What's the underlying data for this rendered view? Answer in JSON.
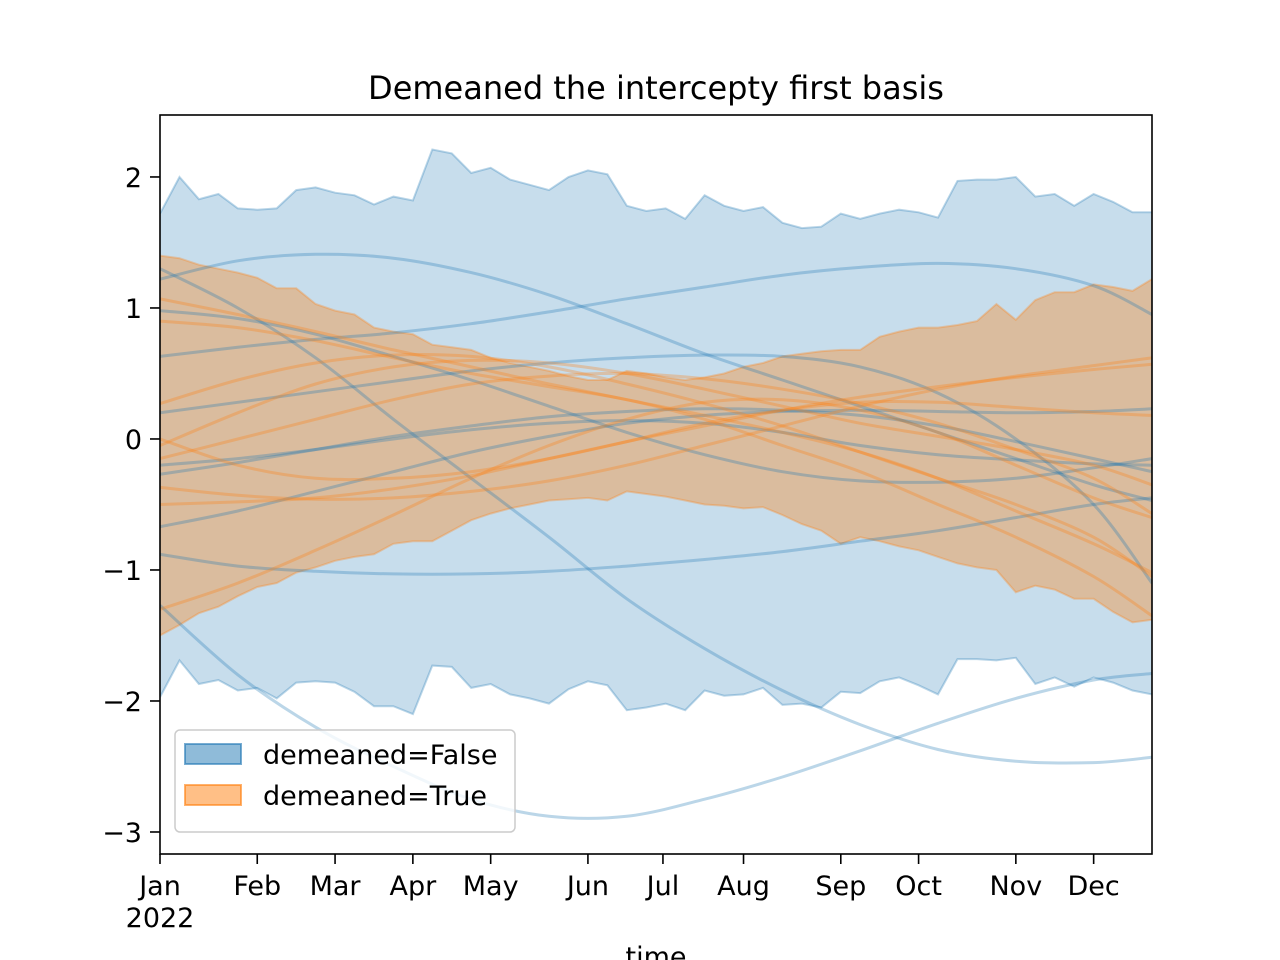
{
  "chart_data": {
    "type": "line",
    "title": "Demeaned the intercepty first basis",
    "xlabel": "time",
    "x_year_label": "2022",
    "xlim": [
      0,
      357
    ],
    "xticks": [
      {
        "value": 0,
        "label": "Jan"
      },
      {
        "value": 35,
        "label": "Feb"
      },
      {
        "value": 63,
        "label": "Mar"
      },
      {
        "value": 91,
        "label": "Apr"
      },
      {
        "value": 119,
        "label": "May"
      },
      {
        "value": 154,
        "label": "Jun"
      },
      {
        "value": 181,
        "label": "Jul"
      },
      {
        "value": 210,
        "label": "Aug"
      },
      {
        "value": 245,
        "label": "Sep"
      },
      {
        "value": 273,
        "label": "Oct"
      },
      {
        "value": 308,
        "label": "Nov"
      },
      {
        "value": 336,
        "label": "Dec"
      }
    ],
    "ylim": [
      -3.168,
      2.473
    ],
    "yticks": [
      {
        "value": -3,
        "label": "−3"
      },
      {
        "value": -2,
        "label": "−2"
      },
      {
        "value": -1,
        "label": "−1"
      },
      0,
      1,
      2
    ],
    "legend": "lower left",
    "x": [
      0,
      7,
      14,
      21,
      28,
      35,
      42,
      49,
      56,
      63,
      70,
      77,
      84,
      91,
      98,
      105,
      112,
      119,
      126,
      133,
      140,
      147,
      154,
      161,
      168,
      175,
      182,
      189,
      196,
      203,
      210,
      217,
      224,
      231,
      238,
      245,
      252,
      259,
      266,
      273,
      280,
      287,
      294,
      301,
      308,
      315,
      322,
      329,
      336,
      343,
      350,
      357
    ],
    "bands": [
      {
        "name": "demeaned=False",
        "color": "#1f77b4",
        "upper": [
          1.72,
          2.0,
          1.83,
          1.87,
          1.76,
          1.75,
          1.76,
          1.9,
          1.92,
          1.88,
          1.86,
          1.79,
          1.85,
          1.82,
          2.21,
          2.18,
          2.03,
          2.07,
          1.98,
          1.94,
          1.9,
          2.0,
          2.05,
          2.02,
          1.78,
          1.74,
          1.76,
          1.68,
          1.86,
          1.78,
          1.74,
          1.77,
          1.65,
          1.61,
          1.62,
          1.72,
          1.68,
          1.72,
          1.75,
          1.73,
          1.69,
          1.97,
          1.98,
          1.98,
          2.0,
          1.85,
          1.87,
          1.78,
          1.87,
          1.81,
          1.73,
          1.73
        ],
        "lower": [
          -1.97,
          -1.69,
          -1.87,
          -1.84,
          -1.92,
          -1.9,
          -1.98,
          -1.86,
          -1.85,
          -1.86,
          -1.93,
          -2.04,
          -2.04,
          -2.1,
          -1.73,
          -1.74,
          -1.9,
          -1.87,
          -1.95,
          -1.98,
          -2.02,
          -1.91,
          -1.85,
          -1.88,
          -2.07,
          -2.05,
          -2.02,
          -2.07,
          -1.92,
          -1.96,
          -1.95,
          -1.9,
          -2.03,
          -2.02,
          -2.05,
          -1.93,
          -1.94,
          -1.85,
          -1.82,
          -1.88,
          -1.95,
          -1.68,
          -1.68,
          -1.69,
          -1.67,
          -1.87,
          -1.82,
          -1.89,
          -1.82,
          -1.86,
          -1.92,
          -1.95
        ]
      },
      {
        "name": "demeaned=True",
        "color": "#ff7f0e",
        "upper": [
          1.4,
          1.38,
          1.33,
          1.3,
          1.27,
          1.23,
          1.15,
          1.15,
          1.03,
          0.98,
          0.95,
          0.85,
          0.82,
          0.8,
          0.72,
          0.7,
          0.68,
          0.62,
          0.58,
          0.55,
          0.52,
          0.48,
          0.45,
          0.45,
          0.52,
          0.5,
          0.47,
          0.45,
          0.47,
          0.5,
          0.55,
          0.58,
          0.63,
          0.65,
          0.67,
          0.68,
          0.68,
          0.78,
          0.82,
          0.85,
          0.85,
          0.87,
          0.9,
          1.03,
          0.91,
          1.06,
          1.12,
          1.12,
          1.18,
          1.16,
          1.13,
          1.22
        ],
        "lower": [
          -1.5,
          -1.42,
          -1.33,
          -1.28,
          -1.2,
          -1.13,
          -1.1,
          -1.02,
          -0.98,
          -0.93,
          -0.9,
          -0.88,
          -0.8,
          -0.78,
          -0.78,
          -0.7,
          -0.62,
          -0.57,
          -0.53,
          -0.5,
          -0.47,
          -0.46,
          -0.45,
          -0.47,
          -0.4,
          -0.42,
          -0.44,
          -0.47,
          -0.5,
          -0.51,
          -0.53,
          -0.52,
          -0.58,
          -0.65,
          -0.7,
          -0.8,
          -0.75,
          -0.78,
          -0.82,
          -0.85,
          -0.9,
          -0.95,
          -0.98,
          -1.0,
          -1.17,
          -1.12,
          -1.15,
          -1.22,
          -1.22,
          -1.32,
          -1.4,
          -1.38
        ]
      }
    ],
    "line_x": [
      0,
      28,
      56,
      84,
      112,
      140,
      168,
      196,
      224,
      252,
      280,
      308,
      336,
      357
    ],
    "lines": [
      {
        "color": "#1f77b4",
        "values": [
          -1.27,
          -1.8,
          -2.2,
          -2.5,
          -2.75,
          -2.88,
          -2.88,
          -2.75,
          -2.58,
          -2.38,
          -2.17,
          -1.98,
          -1.84,
          -1.79
        ]
      },
      {
        "color": "#1f77b4",
        "values": [
          1.3,
          1.0,
          0.62,
          0.15,
          -0.3,
          -0.75,
          -1.22,
          -1.6,
          -1.92,
          -2.18,
          -2.37,
          -2.46,
          -2.47,
          -2.43
        ]
      },
      {
        "color": "#1f77b4",
        "values": [
          1.22,
          1.36,
          1.41,
          1.38,
          1.27,
          1.1,
          0.88,
          0.65,
          0.45,
          0.25,
          0.05,
          -0.15,
          -0.35,
          -0.47
        ]
      },
      {
        "color": "#1f77b4",
        "values": [
          0.63,
          0.7,
          0.76,
          0.81,
          0.88,
          0.97,
          1.07,
          1.16,
          1.25,
          1.31,
          1.34,
          1.3,
          1.17,
          0.95
        ]
      },
      {
        "color": "#1f77b4",
        "values": [
          0.98,
          0.92,
          0.8,
          0.63,
          0.45,
          0.25,
          0.05,
          -0.12,
          -0.25,
          -0.32,
          -0.33,
          -0.3,
          -0.22,
          -0.15
        ]
      },
      {
        "color": "#1f77b4",
        "values": [
          0.2,
          0.28,
          0.36,
          0.44,
          0.52,
          0.58,
          0.62,
          0.64,
          0.63,
          0.55,
          0.35,
          0.0,
          -0.5,
          -1.1
        ]
      },
      {
        "color": "#1f77b4",
        "values": [
          -0.88,
          -0.97,
          -1.01,
          -1.03,
          -1.03,
          -1.01,
          -0.97,
          -0.92,
          -0.86,
          -0.78,
          -0.7,
          -0.6,
          -0.5,
          -0.45
        ]
      },
      {
        "color": "#1f77b4",
        "values": [
          -0.67,
          -0.55,
          -0.4,
          -0.25,
          -0.1,
          0.02,
          0.12,
          0.18,
          0.21,
          0.22,
          0.21,
          0.2,
          0.21,
          0.23
        ]
      },
      {
        "color": "#1f77b4",
        "values": [
          -0.2,
          -0.15,
          -0.08,
          0.0,
          0.07,
          0.12,
          0.14,
          0.12,
          0.05,
          -0.05,
          -0.12,
          -0.16,
          -0.19,
          -0.2
        ]
      },
      {
        "color": "#1f77b4",
        "values": [
          -0.27,
          -0.18,
          -0.08,
          0.02,
          0.1,
          0.17,
          0.21,
          0.23,
          0.22,
          0.18,
          0.1,
          -0.02,
          -0.15,
          -0.25
        ]
      },
      {
        "color": "#ff7f0e",
        "values": [
          1.07,
          0.95,
          0.82,
          0.68,
          0.55,
          0.42,
          0.3,
          0.18,
          0.05,
          -0.1,
          -0.3,
          -0.55,
          -0.8,
          -1.02
        ]
      },
      {
        "color": "#ff7f0e",
        "values": [
          0.27,
          0.45,
          0.58,
          0.64,
          0.63,
          0.55,
          0.42,
          0.27,
          0.1,
          -0.1,
          -0.3,
          -0.5,
          -0.75,
          -1.05
        ]
      },
      {
        "color": "#ff7f0e",
        "values": [
          -0.37,
          -0.43,
          -0.46,
          -0.45,
          -0.4,
          -0.32,
          -0.2,
          -0.05,
          0.1,
          0.25,
          0.38,
          0.48,
          0.56,
          0.62
        ]
      },
      {
        "color": "#ff7f0e",
        "values": [
          -0.15,
          0.0,
          0.15,
          0.3,
          0.42,
          0.48,
          0.5,
          0.46,
          0.38,
          0.27,
          0.12,
          -0.08,
          -0.3,
          -0.57
        ]
      },
      {
        "color": "#ff7f0e",
        "values": [
          -0.5,
          -0.48,
          -0.45,
          -0.38,
          -0.28,
          -0.15,
          -0.02,
          0.1,
          0.22,
          0.32,
          0.4,
          0.47,
          0.53,
          0.57
        ]
      },
      {
        "color": "#ff7f0e",
        "values": [
          -1.3,
          -1.1,
          -0.85,
          -0.58,
          -0.3,
          -0.05,
          0.15,
          0.28,
          0.3,
          0.22,
          0.05,
          -0.2,
          -0.45,
          -0.6
        ]
      },
      {
        "color": "#ff7f0e",
        "values": [
          -0.05,
          0.2,
          0.42,
          0.55,
          0.6,
          0.58,
          0.5,
          0.38,
          0.25,
          0.12,
          0.02,
          -0.08,
          -0.2,
          -0.35
        ]
      },
      {
        "color": "#ff7f0e",
        "values": [
          0.0,
          -0.2,
          -0.3,
          -0.3,
          -0.25,
          -0.15,
          -0.02,
          0.12,
          0.22,
          0.28,
          0.28,
          0.24,
          0.2,
          0.18
        ]
      },
      {
        "color": "#ff7f0e",
        "values": [
          0.9,
          0.85,
          0.75,
          0.62,
          0.5,
          0.4,
          0.3,
          0.15,
          -0.05,
          -0.25,
          -0.5,
          -0.75,
          -1.05,
          -1.35
        ]
      }
    ]
  }
}
